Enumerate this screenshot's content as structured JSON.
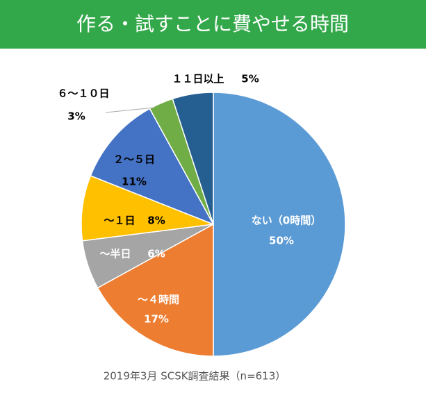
{
  "chart_data": {
    "type": "pie",
    "title": "作る・試すことに費やせる時間",
    "categories": [
      "ない（0時間）",
      "～４時間",
      "～半日",
      "～１日",
      "２～５日",
      "６～１０日",
      "１１日以上"
    ],
    "values": [
      50,
      17,
      6,
      8,
      11,
      3,
      5
    ],
    "value_labels": [
      "50%",
      "17%",
      "6%",
      "8%",
      "11%",
      "3%",
      "5%"
    ],
    "colors": [
      "#5b9bd5",
      "#ed7d31",
      "#a5a5a5",
      "#ffc000",
      "#4472c4",
      "#70ad47",
      "#255e91"
    ],
    "source": "2019年3月 SCSK調査結果（n=613）"
  }
}
